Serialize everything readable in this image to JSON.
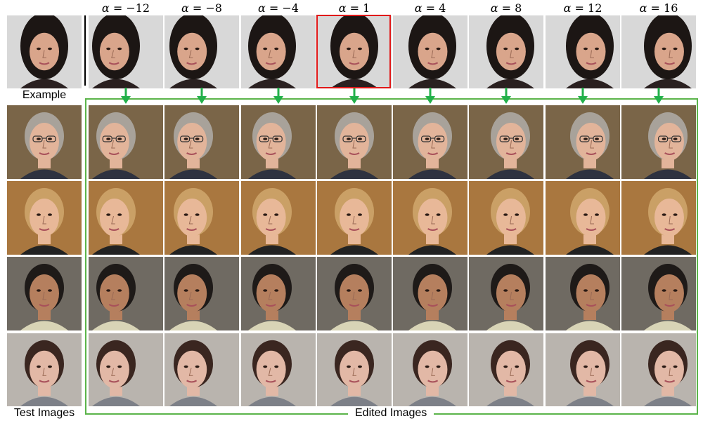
{
  "alpha_prefix": "α =",
  "alphas": [
    "−12",
    "−8",
    "−4",
    "1",
    "4",
    "8",
    "12",
    "16"
  ],
  "labels": {
    "example": "Example",
    "test": "Test Images",
    "edited": "Edited Images"
  },
  "colors": {
    "highlight": "#e01818",
    "edited_frame": "#5bb44a",
    "arrow": "#22b04a"
  },
  "rows": [
    {
      "name": "example-woman",
      "skin": "#d9a58b",
      "hair": "#1c1614",
      "bg": "#d8d8d8",
      "shirt": "#2a2020"
    },
    {
      "name": "older-man-glasses",
      "skin": "#e2b49a",
      "hair": "#a8a29a",
      "bg": "#7a6548",
      "shirt": "#2e3240"
    },
    {
      "name": "blonde-woman",
      "skin": "#e8b898",
      "hair": "#caa066",
      "bg": "#a9773f",
      "shirt": "#222222"
    },
    {
      "name": "young-man",
      "skin": "#b57f5e",
      "hair": "#1e1a18",
      "bg": "#6f6a62",
      "shirt": "#d8d4b6"
    },
    {
      "name": "dark-hair-person",
      "skin": "#e2b8a6",
      "hair": "#3a2620",
      "bg": "#b9b4ae",
      "shirt": "#7d8088"
    }
  ]
}
